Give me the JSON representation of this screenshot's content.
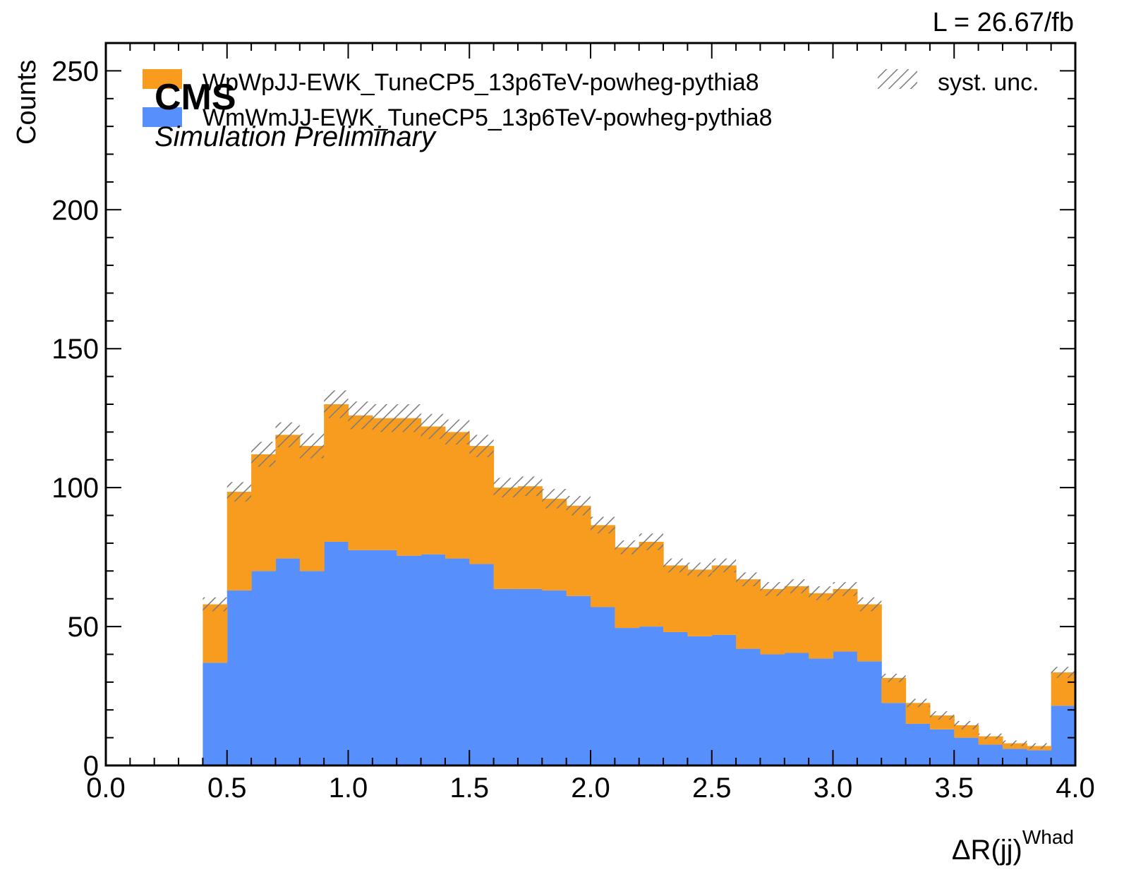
{
  "chart_data": {
    "type": "bar",
    "stacked": true,
    "luminosity": "L = 26.67/fb",
    "cms_label": "CMS",
    "cms_sublabel": "Simulation Preliminary",
    "xlabel_main": "ΔR(jj)",
    "xlabel_sup": "Whad",
    "ylabel": "Counts",
    "xlim": [
      0.0,
      4.0
    ],
    "ylim": [
      0,
      260
    ],
    "x_ticks": [
      "0.0",
      "0.5",
      "1.0",
      "1.5",
      "2.0",
      "2.5",
      "3.0",
      "3.5",
      "4.0"
    ],
    "y_ticks": [
      "0",
      "50",
      "100",
      "150",
      "200",
      "250"
    ],
    "bin_edges": [
      0.0,
      0.1,
      0.2,
      0.3,
      0.4,
      0.5,
      0.6,
      0.7,
      0.8,
      0.9,
      1.0,
      1.1,
      1.2,
      1.3,
      1.4,
      1.5,
      1.6,
      1.7,
      1.8,
      1.9,
      2.0,
      2.1,
      2.2,
      2.3,
      2.4,
      2.5,
      2.6,
      2.7,
      2.8,
      2.9,
      3.0,
      3.1,
      3.2,
      3.3,
      3.4,
      3.5,
      3.6,
      3.7,
      3.8,
      3.9,
      4.0
    ],
    "series": [
      {
        "name": "WmWmJJ-EWK_TuneCP5_13p6TeV-powheg-pythia8",
        "color": "#5790fc",
        "values": [
          0,
          0,
          0,
          0,
          37,
          63,
          70,
          74.5,
          70,
          80.5,
          77.5,
          77.5,
          75.5,
          76,
          74.5,
          72.5,
          63.5,
          63.5,
          63,
          61,
          57,
          49.5,
          50,
          48,
          46.5,
          47,
          42,
          40,
          40.5,
          38.5,
          41,
          37.5,
          22.5,
          15,
          13,
          10,
          7.5,
          6,
          5.5,
          21.5
        ]
      },
      {
        "name": "WpWpJJ-EWK_TuneCP5_13p6TeV-powheg-pythia8",
        "color": "#f89c20",
        "values": [
          0,
          0,
          0,
          0,
          21,
          35.5,
          42,
          44.5,
          45,
          49.5,
          48.5,
          47.5,
          49.5,
          46,
          45.5,
          42.5,
          36.5,
          37,
          33,
          32.5,
          29.5,
          29,
          30.5,
          24,
          24,
          25,
          25,
          23.5,
          24,
          23.5,
          22.5,
          20.5,
          9,
          7.5,
          5,
          4.5,
          3,
          2,
          1.5,
          12
        ]
      }
    ],
    "uncertainty": {
      "name": "syst. unc.",
      "half_widths": [
        0,
        0,
        0,
        0,
        2.5,
        3.5,
        4.5,
        4.5,
        4.5,
        5,
        5,
        5,
        5,
        4.5,
        4.5,
        4,
        3.5,
        3.5,
        3.5,
        3.5,
        3,
        2.5,
        3,
        2.5,
        2.5,
        2.5,
        2.5,
        2.5,
        2.5,
        2.5,
        2.5,
        2.5,
        1.5,
        1.5,
        1.5,
        1.5,
        1,
        1,
        1,
        2
      ]
    },
    "legend": [
      {
        "label": "WpWpJJ-EWK_TuneCP5_13p6TeV-powheg-pythia8",
        "color": "#f89c20"
      },
      {
        "label": "WmWmJJ-EWK_TuneCP5_13p6TeV-powheg-pythia8",
        "color": "#5790fc"
      },
      {
        "label": "syst. unc.",
        "color": "#888888"
      }
    ],
    "legend_position": "top",
    "grid": false
  }
}
